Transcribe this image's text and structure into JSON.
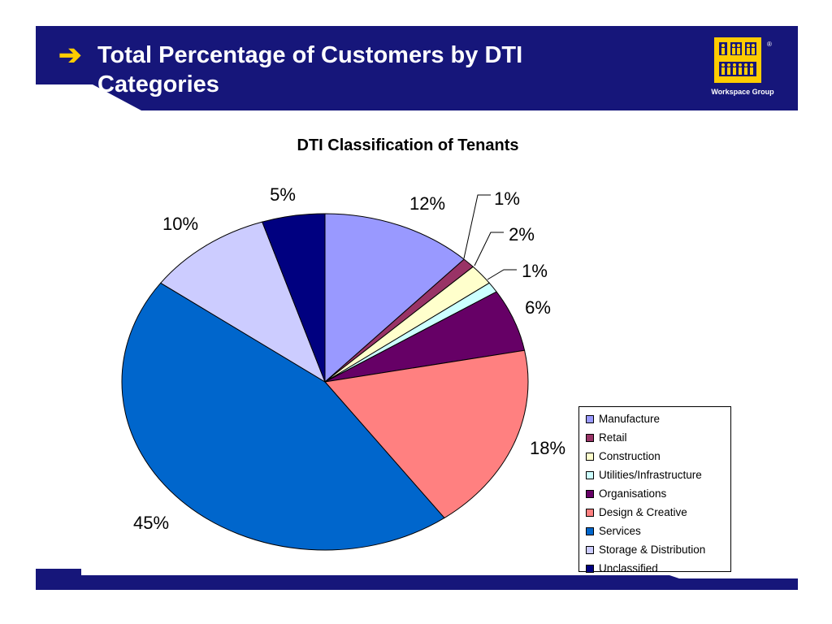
{
  "slide": {
    "title": "Total Percentage of Customers by DTI Categories",
    "arrow_icon": "right-arrow-icon",
    "logo_text": "Workspace Group",
    "logo_mark": "®"
  },
  "colors": {
    "banner": "#16167a",
    "arrow": "#ffcc00",
    "logo": "#ffcc00"
  },
  "chart_data": {
    "type": "pie",
    "title": "DTI Classification of Tenants",
    "legend_position": "right-bottom",
    "slices": [
      {
        "name": "Manufacture",
        "value": 12,
        "label": "12%",
        "color": "#9999ff"
      },
      {
        "name": "Retail",
        "value": 1,
        "label": "1%",
        "color": "#993366"
      },
      {
        "name": "Construction",
        "value": 2,
        "label": "2%",
        "color": "#ffffcc"
      },
      {
        "name": "Utilities/Infrastructure",
        "value": 1,
        "label": "1%",
        "color": "#ccffff"
      },
      {
        "name": "Organisations",
        "value": 6,
        "label": "6%",
        "color": "#660066"
      },
      {
        "name": "Design & Creative",
        "value": 18,
        "label": "18%",
        "color": "#ff8080"
      },
      {
        "name": "Services",
        "value": 45,
        "label": "45%",
        "color": "#0066cc"
      },
      {
        "name": "Storage & Distribution",
        "value": 10,
        "label": "10%",
        "color": "#ccccff"
      },
      {
        "name": "Unclassified",
        "value": 5,
        "label": "5%",
        "color": "#000080"
      }
    ]
  }
}
